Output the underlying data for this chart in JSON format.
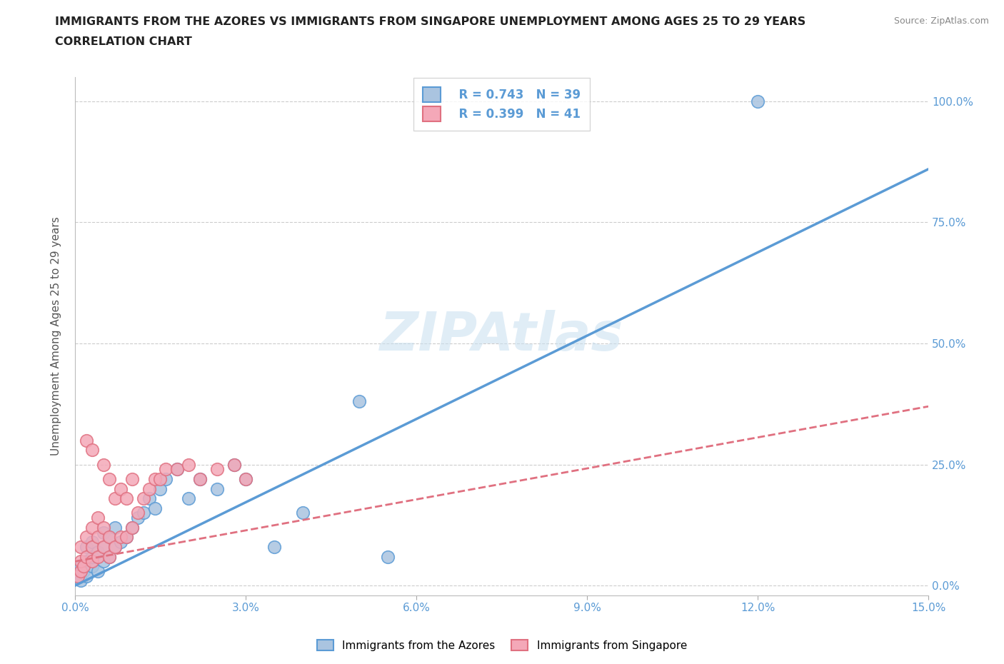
{
  "title": "IMMIGRANTS FROM THE AZORES VS IMMIGRANTS FROM SINGAPORE UNEMPLOYMENT AMONG AGES 25 TO 29 YEARS",
  "subtitle": "CORRELATION CHART",
  "source": "Source: ZipAtlas.com",
  "ylabel_left": "Unemployment Among Ages 25 to 29 years",
  "xlim": [
    0.0,
    0.15
  ],
  "ylim": [
    -0.02,
    1.05
  ],
  "xticks": [
    0.0,
    0.03,
    0.06,
    0.09,
    0.12,
    0.15
  ],
  "yticks_left": [
    0.0,
    0.25,
    0.5,
    0.75,
    1.0
  ],
  "ytick_labels_right": [
    "0.0%",
    "25.0%",
    "50.0%",
    "75.0%",
    "100.0%"
  ],
  "xtick_labels": [
    "0.0%",
    "3.0%",
    "6.0%",
    "9.0%",
    "12.0%",
    "15.0%"
  ],
  "legend_azores": "Immigrants from the Azores",
  "legend_singapore": "Immigrants from Singapore",
  "r_azores": 0.743,
  "n_azores": 39,
  "r_singapore": 0.399,
  "n_singapore": 41,
  "color_azores": "#aac4e0",
  "color_singapore": "#f4a8b8",
  "line_color_azores": "#5b9bd5",
  "line_color_singapore": "#e07080",
  "watermark": "ZIPAtlas",
  "azores_x": [
    0.0005,
    0.001,
    0.001,
    0.0015,
    0.002,
    0.002,
    0.002,
    0.003,
    0.003,
    0.003,
    0.004,
    0.004,
    0.005,
    0.005,
    0.005,
    0.006,
    0.006,
    0.007,
    0.007,
    0.008,
    0.009,
    0.01,
    0.011,
    0.012,
    0.013,
    0.014,
    0.015,
    0.016,
    0.018,
    0.02,
    0.022,
    0.025,
    0.028,
    0.03,
    0.035,
    0.04,
    0.05,
    0.055,
    0.12
  ],
  "azores_y": [
    0.02,
    0.01,
    0.04,
    0.03,
    0.02,
    0.05,
    0.08,
    0.04,
    0.06,
    0.09,
    0.03,
    0.07,
    0.05,
    0.08,
    0.11,
    0.06,
    0.1,
    0.08,
    0.12,
    0.09,
    0.1,
    0.12,
    0.14,
    0.15,
    0.18,
    0.16,
    0.2,
    0.22,
    0.24,
    0.18,
    0.22,
    0.2,
    0.25,
    0.22,
    0.08,
    0.15,
    0.38,
    0.06,
    1.0
  ],
  "singapore_x": [
    0.0005,
    0.001,
    0.001,
    0.001,
    0.0015,
    0.002,
    0.002,
    0.002,
    0.003,
    0.003,
    0.003,
    0.003,
    0.004,
    0.004,
    0.004,
    0.005,
    0.005,
    0.005,
    0.006,
    0.006,
    0.006,
    0.007,
    0.007,
    0.008,
    0.008,
    0.009,
    0.009,
    0.01,
    0.01,
    0.011,
    0.012,
    0.013,
    0.014,
    0.015,
    0.016,
    0.018,
    0.02,
    0.022,
    0.025,
    0.028,
    0.03
  ],
  "singapore_y": [
    0.02,
    0.03,
    0.05,
    0.08,
    0.04,
    0.06,
    0.1,
    0.3,
    0.05,
    0.08,
    0.12,
    0.28,
    0.06,
    0.1,
    0.14,
    0.08,
    0.12,
    0.25,
    0.06,
    0.1,
    0.22,
    0.08,
    0.18,
    0.1,
    0.2,
    0.1,
    0.18,
    0.12,
    0.22,
    0.15,
    0.18,
    0.2,
    0.22,
    0.22,
    0.24,
    0.24,
    0.25,
    0.22,
    0.24,
    0.25,
    0.22
  ],
  "azores_trend_x0": 0.0,
  "azores_trend_x1": 0.15,
  "azores_trend_y0": 0.0,
  "azores_trend_y1": 0.86,
  "singapore_trend_x0": 0.0,
  "singapore_trend_x1": 0.15,
  "singapore_trend_y0": 0.05,
  "singapore_trend_y1": 0.37
}
